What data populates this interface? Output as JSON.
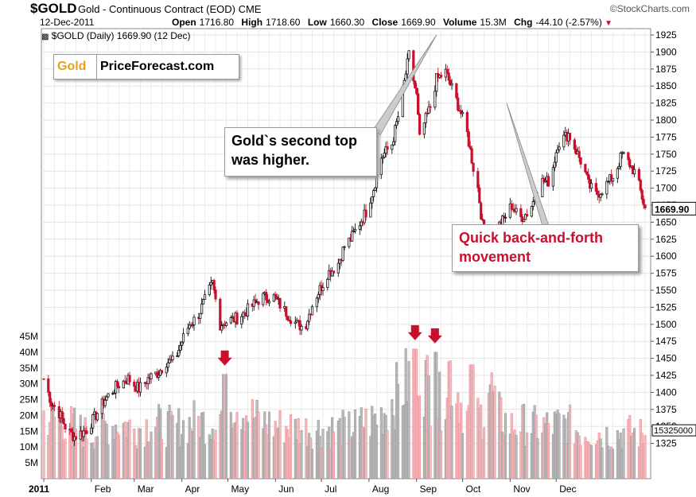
{
  "header": {
    "symbol": "$GOLD",
    "name": "Gold - Continuous Contract (EOD)",
    "exchange": "CME",
    "provider": "©StockCharts.com",
    "date": "12-Dec-2011",
    "open_label": "Open",
    "open": "1716.80",
    "high_label": "High",
    "high": "1718.60",
    "low_label": "Low",
    "low": "1660.30",
    "close_label": "Close",
    "close": "1669.90",
    "volume_label": "Volume",
    "volume": "15.3M",
    "chg_label": "Chg",
    "chg": "-44.10 (-2.57%)",
    "legend": "$GOLD (Daily) 1669.90 (12 Dec)"
  },
  "logo": {
    "part1": "Gold",
    "part2": "PriceForecast.com"
  },
  "callouts": {
    "top": {
      "line1": "Gold`s second top",
      "line2": "was higher."
    },
    "quick": {
      "line1": "Quick back-and-forth",
      "line2": "movement"
    }
  },
  "chart_data": {
    "type": "candlestick",
    "price_axis": {
      "min": 1300,
      "max": 1925,
      "ticks": [
        1325,
        1350,
        1375,
        1400,
        1425,
        1450,
        1475,
        1500,
        1525,
        1550,
        1575,
        1600,
        1625,
        1650,
        1675,
        1700,
        1725,
        1750,
        1775,
        1800,
        1825,
        1850,
        1875,
        1900,
        1925
      ]
    },
    "volume_axis": {
      "labels": [
        "5M",
        "10M",
        "15M",
        "20M",
        "25M",
        "30M",
        "35M",
        "40M",
        "45M"
      ]
    },
    "last_price_label": "1669.90",
    "last_volume_label": "15325000",
    "x_labels": [
      "2011",
      "Feb",
      "Mar",
      "Apr",
      "May",
      "Jun",
      "Jul",
      "Aug",
      "Sep",
      "Oct",
      "Nov",
      "Dec"
    ],
    "price_path_days": [
      0,
      5,
      10,
      15,
      20,
      28,
      35,
      40,
      48,
      55,
      62,
      68,
      75,
      80,
      85,
      90,
      95,
      100,
      105,
      110,
      115,
      120,
      127,
      135,
      142,
      150,
      157,
      165,
      170,
      176,
      182,
      185,
      188,
      192,
      196,
      200,
      205,
      210,
      215,
      220,
      227,
      232,
      238,
      243,
      246,
      248,
      252,
      256,
      262,
      268,
      272,
      276,
      280,
      283,
      286,
      290,
      295,
      300,
      305,
      310,
      316,
      325,
      330,
      335,
      342,
      349,
      352,
      355,
      360,
      365,
      372,
      377,
      382,
      386,
      392
    ],
    "price_path_values": [
      1420,
      1385,
      1370,
      1345,
      1335,
      1345,
      1370,
      1390,
      1410,
      1420,
      1405,
      1420,
      1430,
      1445,
      1445,
      1475,
      1500,
      1510,
      1535,
      1560,
      1500,
      1505,
      1510,
      1525,
      1540,
      1540,
      1520,
      1500,
      1495,
      1535,
      1560,
      1575,
      1580,
      1590,
      1615,
      1625,
      1645,
      1665,
      1700,
      1745,
      1765,
      1815,
      1895,
      1835,
      1740,
      1795,
      1820,
      1860,
      1870,
      1835,
      1810,
      1780,
      1730,
      1700,
      1645,
      1625,
      1640,
      1655,
      1675,
      1655,
      1665,
      1710,
      1710,
      1765,
      1780,
      1745,
      1730,
      1705,
      1690,
      1700,
      1720,
      1750,
      1735,
      1720,
      1670
    ],
    "volume_path_days": [
      0,
      10,
      20,
      30,
      40,
      50,
      60,
      70,
      80,
      90,
      100,
      108,
      115,
      120,
      125,
      130,
      140,
      150,
      160,
      170,
      180,
      190,
      200,
      208,
      214,
      220,
      226,
      232,
      238,
      242,
      244,
      248,
      252,
      256,
      260,
      264,
      268,
      272,
      276,
      280,
      286,
      290,
      296,
      300,
      305,
      310,
      320,
      330,
      340,
      350,
      360,
      370,
      380,
      392
    ],
    "volume_path_values": [
      22,
      20,
      18,
      15,
      18,
      19,
      17,
      19,
      18,
      18,
      20,
      19,
      22,
      25,
      27,
      24,
      20,
      18,
      18,
      17,
      17,
      17,
      17,
      19,
      20,
      22,
      26,
      30,
      34,
      36,
      42,
      35,
      30,
      24,
      28,
      38,
      34,
      26,
      22,
      20,
      22,
      34,
      22,
      20,
      18,
      19,
      18,
      18,
      19,
      16,
      16,
      15,
      16,
      15
    ],
    "volume_highlights": [
      {
        "day": 118,
        "value": 33
      },
      {
        "day": 242,
        "value": 41
      },
      {
        "day": 255,
        "value": 40
      },
      {
        "day": 279,
        "value": 36
      }
    ],
    "arrows_days": [
      118,
      242,
      255
    ],
    "callout_top_peak_day": 256,
    "callout_quick_peak_day": 281,
    "grid": true
  }
}
